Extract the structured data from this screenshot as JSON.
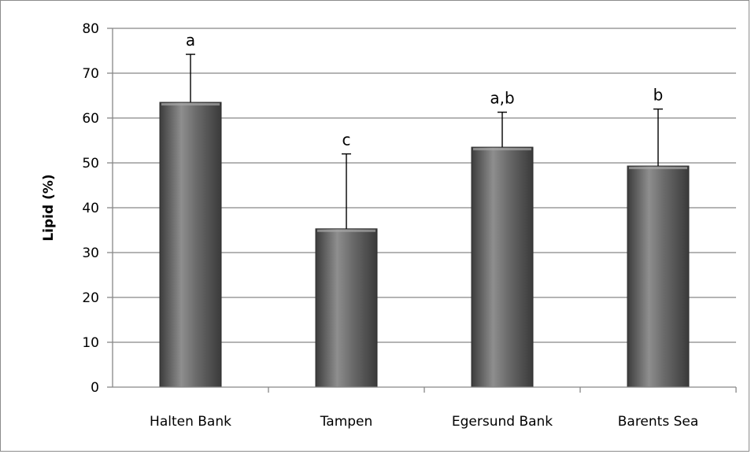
{
  "chart_data": {
    "type": "bar",
    "title": "",
    "xlabel": "",
    "ylabel": "Lipid (%)",
    "ylim": [
      0,
      80
    ],
    "yticks": [
      0,
      10,
      20,
      30,
      40,
      50,
      60,
      70,
      80
    ],
    "categories": [
      "Halten Bank",
      "Tampen",
      "Egersund Bank",
      "Barents Sea"
    ],
    "values": [
      63.5,
      35.3,
      53.5,
      49.3
    ],
    "error_upper": [
      74.2,
      52.0,
      61.3,
      62.0
    ],
    "annotations": [
      "a",
      "c",
      "a,b",
      "b"
    ],
    "grid": true,
    "legend": "none",
    "colors": {
      "bar_light": "#8a8a8a",
      "bar_dark": "#3a3a3a",
      "gridline": "#878787",
      "axis": "#878787",
      "error_bar": "#000000"
    }
  }
}
